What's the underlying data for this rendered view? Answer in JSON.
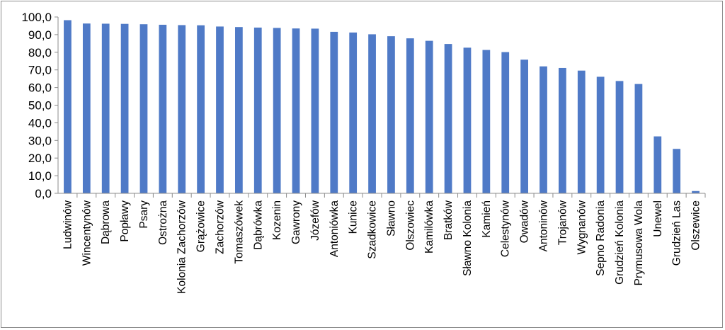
{
  "chart_data": {
    "type": "bar",
    "title": "",
    "xlabel": "",
    "ylabel": "",
    "ylim": [
      0,
      100
    ],
    "ytick_step": 10,
    "ytick_labels": [
      "0,0",
      "10,0",
      "20,0",
      "30,0",
      "40,0",
      "50,0",
      "60,0",
      "70,0",
      "80,0",
      "90,0",
      "100,0"
    ],
    "grid": false,
    "legend": "none",
    "bar_color": "#4f7ac7",
    "categories": [
      "Ludwinów",
      "Wincentynów",
      "Dąbrowa",
      "Popławy",
      "Psary",
      "Ostrożna",
      "Kolonia Zachorzów",
      "Grążowice",
      "Zachorzów",
      "Tomaszówek",
      "Dąbrówka",
      "Kozenin",
      "Gawrony",
      "Józefów",
      "Antoniówka",
      "Kunice",
      "Szadkowice",
      "Sławno",
      "Olszowiec",
      "Kamilówka",
      "Bratków",
      "Sławno Kolonia",
      "Kamień",
      "Celestynów",
      "Owadów",
      "Antoninów",
      "Trojanów",
      "Wygnanów",
      "Sepno Radonia",
      "Grudzień Kolonia",
      "Prymusowa Wola",
      "Unewel",
      "Grudzień Las",
      "Olszewice"
    ],
    "values": [
      98.2,
      96.3,
      96.2,
      96.1,
      95.9,
      95.6,
      95.4,
      95.3,
      94.6,
      94.3,
      94.0,
      93.8,
      93.5,
      93.4,
      91.6,
      91.2,
      90.2,
      89.1,
      87.9,
      86.5,
      84.7,
      82.6,
      81.3,
      80.1,
      75.8,
      72.0,
      71.1,
      69.6,
      66.1,
      63.7,
      62.0,
      32.3,
      25.2,
      1.3
    ]
  }
}
